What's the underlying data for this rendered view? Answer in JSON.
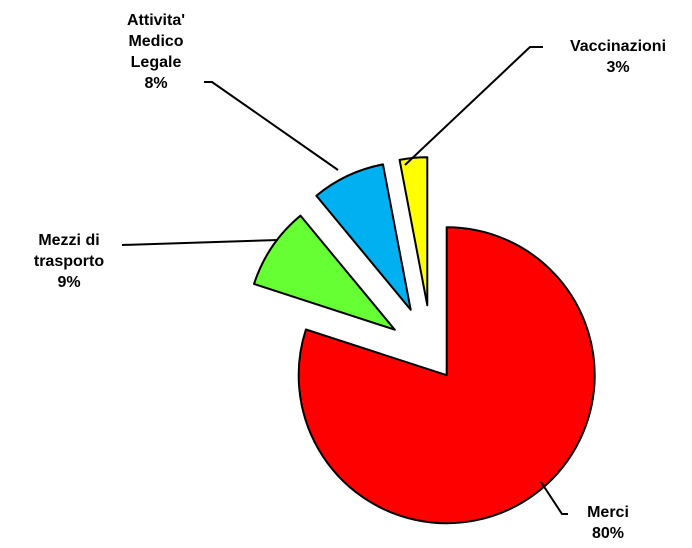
{
  "chart_data": {
    "type": "pie",
    "categories": [
      "Merci",
      "Mezzi di trasporto",
      "Attivita' Medico Legale",
      "Vaccinazioni"
    ],
    "values": [
      80,
      9,
      8,
      3
    ],
    "value_labels": [
      "80%",
      "9%",
      "8%",
      "3%"
    ],
    "colors": [
      "#ff0000",
      "#66ff33",
      "#00b0f0",
      "#ffff00"
    ]
  }
}
